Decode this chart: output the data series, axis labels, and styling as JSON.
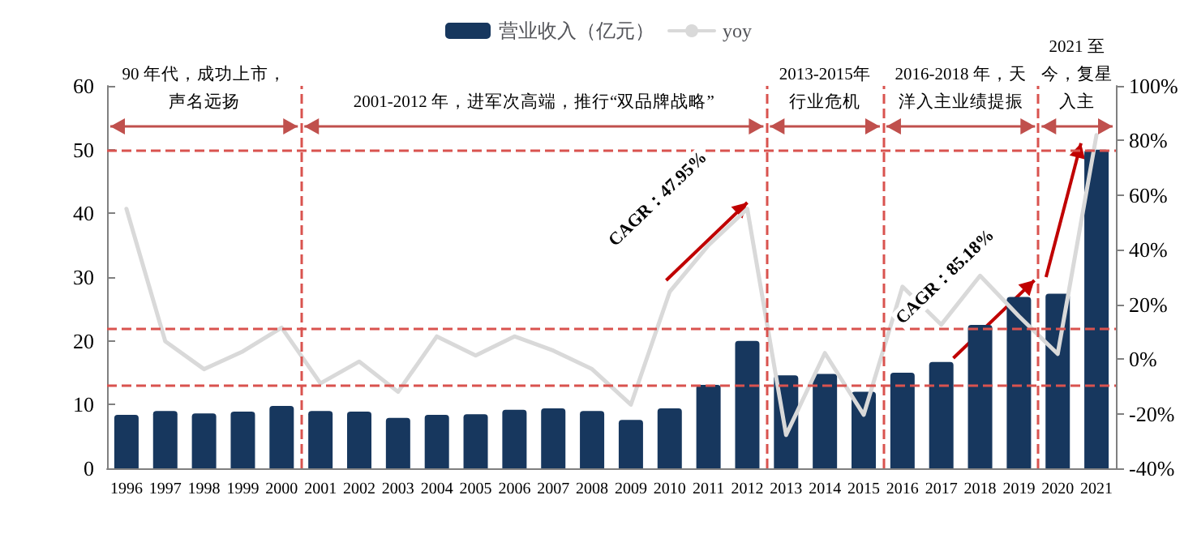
{
  "chart_data": {
    "type": "bar",
    "x": [
      1996,
      1997,
      1998,
      1999,
      2000,
      2001,
      2002,
      2003,
      2004,
      2005,
      2006,
      2007,
      2008,
      2009,
      2010,
      2011,
      2012,
      2013,
      2014,
      2015,
      2016,
      2017,
      2018,
      2019,
      2020,
      2021
    ],
    "series": [
      {
        "name": "营业收入（亿元）",
        "type": "bar",
        "color": "#17375e",
        "values": [
          8.4,
          9.0,
          8.6,
          8.9,
          9.8,
          9.0,
          8.9,
          7.9,
          8.4,
          8.5,
          9.2,
          9.4,
          9.0,
          7.6,
          9.4,
          13.1,
          20.0,
          14.6,
          14.8,
          12.0,
          15.0,
          16.7,
          22.5,
          26.9,
          27.4,
          50.0
        ]
      },
      {
        "name": "yoy",
        "type": "line",
        "axis": "y2",
        "color": "#d9d9d9",
        "marker": "none",
        "line_style": "solid",
        "values": [
          55,
          6.5,
          -3.7,
          2.8,
          11.5,
          -8.9,
          -0.9,
          -12,
          8.3,
          1.3,
          8.3,
          3.1,
          -3.7,
          -16.7,
          24.6,
          41.7,
          55,
          -27.8,
          2.2,
          -20.4,
          26.5,
          12.6,
          30.5,
          15.7,
          1.9,
          82
        ]
      }
    ],
    "xlim": [
      1995.5,
      2021.5
    ],
    "xticks": [
      1996,
      1997,
      1998,
      1999,
      2000,
      2001,
      2002,
      2003,
      2004,
      2005,
      2006,
      2007,
      2008,
      2009,
      2010,
      2011,
      2012,
      2013,
      2014,
      2015,
      2016,
      2017,
      2018,
      2019,
      2020,
      2021
    ],
    "ylim": [
      0,
      60
    ],
    "yticks": [
      0,
      10,
      20,
      30,
      40,
      50,
      60
    ],
    "y2lim": [
      -40,
      100
    ],
    "y2ticks": [
      {
        "value": -40,
        "label": "-40%"
      },
      {
        "value": -20,
        "label": "-20%"
      },
      {
        "value": 0,
        "label": "0%"
      },
      {
        "value": 20,
        "label": "20%"
      },
      {
        "value": 40,
        "label": "40%"
      },
      {
        "value": 60,
        "label": "60%"
      },
      {
        "value": 80,
        "label": "80%"
      },
      {
        "value": 100,
        "label": "100%"
      }
    ],
    "ref_lines": [
      {
        "axis": "y",
        "value": 50,
        "color": "#d9534f",
        "line_style": "dashed"
      },
      {
        "axis": "y",
        "value": 21.9,
        "color": "#d9534f",
        "line_style": "dashed"
      },
      {
        "axis": "y",
        "value": 13.1,
        "color": "#d9534f",
        "line_style": "dashed"
      },
      {
        "axis": "x",
        "value": 2000.5,
        "color": "#d9534f",
        "line_style": "dashed"
      },
      {
        "axis": "x",
        "value": 2012.5,
        "color": "#d9534f",
        "line_style": "dashed"
      },
      {
        "axis": "x",
        "value": 2015.5,
        "color": "#d9534f",
        "line_style": "dashed"
      },
      {
        "axis": "x",
        "value": 2019.5,
        "color": "#d9534f",
        "line_style": "dashed"
      }
    ],
    "annotations": [
      "90 年代，成功上市，声名远扬",
      "2001-2012 年，进军次高端，推行“双品牌战略”",
      "2013-2015年行业危机",
      "2016-2018 年，天洋入主业绩提振",
      "2021 至今，复星入主",
      {
        "text": "CAGR：47.95%",
        "x": 2012,
        "y": 41.7
      },
      {
        "text": "CAGR：85.18%",
        "x": 2019.4,
        "y": 29.5
      }
    ],
    "grid": false,
    "legend": "top"
  }
}
